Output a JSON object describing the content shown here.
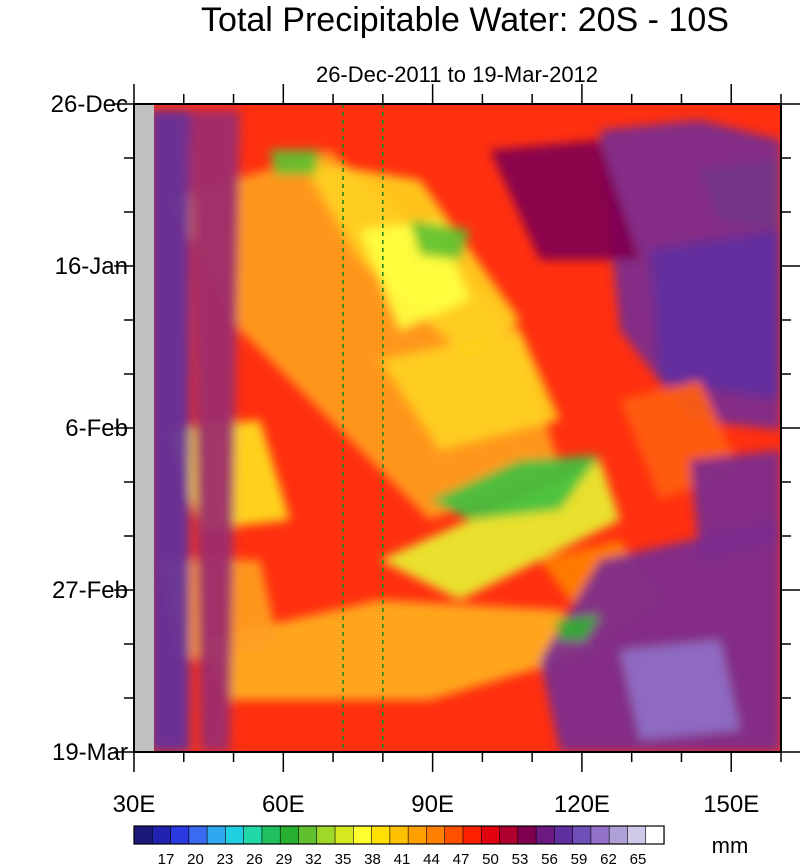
{
  "chart_data": {
    "type": "heatmap",
    "title": "Total Precipitable Water: 20S - 10S",
    "subtitle": "26-Dec-2011 to 19-Mar-2012",
    "x_ticks": [
      {
        "value": 30,
        "label": "30E"
      },
      {
        "value": 60,
        "label": "60E"
      },
      {
        "value": 90,
        "label": "90E"
      },
      {
        "value": 120,
        "label": "120E"
      },
      {
        "value": 150,
        "label": "150E"
      }
    ],
    "xlim": [
      30,
      160
    ],
    "y_ticks": [
      {
        "value": 0,
        "label": "26-Dec"
      },
      {
        "value": 21,
        "label": "16-Jan"
      },
      {
        "value": 42,
        "label": "6-Feb"
      },
      {
        "value": 63,
        "label": "27-Feb"
      },
      {
        "value": 84,
        "label": "19-Mar"
      }
    ],
    "ylim": [
      0,
      84
    ],
    "reference_lines_x": [
      72,
      80
    ],
    "colorbar": {
      "labels": [
        17,
        20,
        23,
        26,
        29,
        32,
        35,
        38,
        41,
        44,
        47,
        50,
        53,
        56,
        59,
        62,
        65
      ],
      "unit": "mm",
      "colors": [
        "#1a1a7a",
        "#2222b0",
        "#2a3ae0",
        "#3a6af0",
        "#30a8f0",
        "#20d0e0",
        "#20d8a8",
        "#20c060",
        "#28b030",
        "#60c030",
        "#a0d828",
        "#d8e820",
        "#ffff30",
        "#ffe000",
        "#ffc000",
        "#ffa000",
        "#ff8000",
        "#ff5000",
        "#ff2000",
        "#e00010",
        "#b00030",
        "#800050",
        "#6a1a80",
        "#6030a0",
        "#7050b8",
        "#9070c8",
        "#b0a0d8",
        "#d0c8e8",
        "#ffffff"
      ]
    }
  }
}
